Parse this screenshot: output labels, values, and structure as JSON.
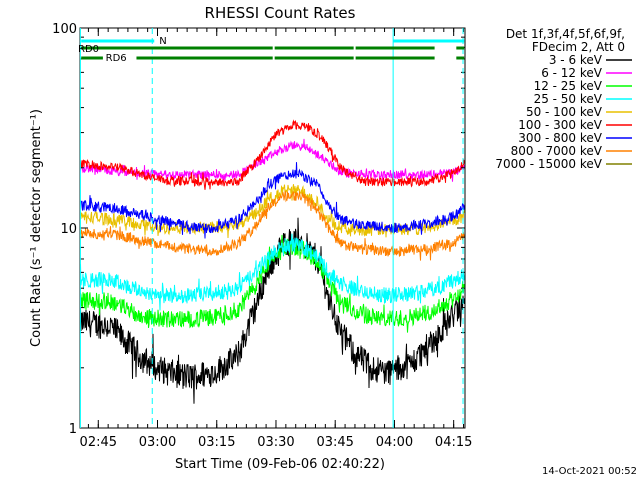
{
  "chart_data": {
    "type": "line",
    "title": "RHESSI Count Rates",
    "xlabel": "Start Time (09-Feb-06 02:40:22)",
    "ylabel": "Count Rate (s⁻¹ detector segment⁻¹)",
    "yscale": "log",
    "ylim": [
      1,
      100
    ],
    "xlim_minutes": [
      0,
      97.5
    ],
    "x_ticks": [
      {
        "label": "02:45",
        "t": 4.63
      },
      {
        "label": "03:00",
        "t": 19.63
      },
      {
        "label": "03:15",
        "t": 34.63
      },
      {
        "label": "03:30",
        "t": 49.63
      },
      {
        "label": "03:45",
        "t": 64.63
      },
      {
        "label": "04:00",
        "t": 79.63
      },
      {
        "label": "04:15",
        "t": 94.63
      }
    ],
    "y_ticks": [
      {
        "label": "1",
        "v": 1
      },
      {
        "label": "10",
        "v": 10
      },
      {
        "label": "100",
        "v": 100
      }
    ],
    "legend_title": [
      "Det 1f,3f,4f,5f,6f,9f,",
      "FDecim 2, Att 0"
    ],
    "legend_position": "right",
    "series": [
      {
        "name": "3 - 6 keV",
        "color": "#000000",
        "points": [
          [
            0,
            3.4
          ],
          [
            8,
            3.2
          ],
          [
            16,
            2.2
          ],
          [
            22,
            1.9
          ],
          [
            28,
            1.8
          ],
          [
            34,
            1.9
          ],
          [
            40,
            2.3
          ],
          [
            44,
            3.8
          ],
          [
            48,
            6.5
          ],
          [
            52,
            8.5
          ],
          [
            56,
            8.7
          ],
          [
            60,
            7.0
          ],
          [
            63,
            4.5
          ],
          [
            66,
            3.0
          ],
          [
            70,
            2.3
          ],
          [
            74,
            2.0
          ],
          [
            78,
            1.9
          ],
          [
            84,
            2.1
          ],
          [
            90,
            2.8
          ],
          [
            95,
            3.8
          ],
          [
            97.5,
            4.2
          ]
        ]
      },
      {
        "name": "6 - 12 keV",
        "color": "#ff00ff",
        "points": [
          [
            0,
            20
          ],
          [
            10,
            19
          ],
          [
            20,
            18.5
          ],
          [
            30,
            18.5
          ],
          [
            40,
            18.5
          ],
          [
            45,
            21
          ],
          [
            50,
            24
          ],
          [
            54,
            26
          ],
          [
            58,
            25
          ],
          [
            62,
            22
          ],
          [
            66,
            19
          ],
          [
            72,
            18.5
          ],
          [
            80,
            18.5
          ],
          [
            88,
            18.5
          ],
          [
            95,
            19
          ],
          [
            97.5,
            20
          ]
        ]
      },
      {
        "name": "12 - 25 keV",
        "color": "#00ff00",
        "points": [
          [
            0,
            4.4
          ],
          [
            8,
            4.3
          ],
          [
            16,
            3.6
          ],
          [
            22,
            3.5
          ],
          [
            28,
            3.5
          ],
          [
            34,
            3.6
          ],
          [
            40,
            3.9
          ],
          [
            44,
            5.0
          ],
          [
            48,
            6.8
          ],
          [
            52,
            8.0
          ],
          [
            56,
            8.0
          ],
          [
            60,
            6.8
          ],
          [
            63,
            5.2
          ],
          [
            66,
            4.3
          ],
          [
            70,
            3.8
          ],
          [
            74,
            3.6
          ],
          [
            78,
            3.5
          ],
          [
            84,
            3.6
          ],
          [
            90,
            3.9
          ],
          [
            95,
            4.5
          ],
          [
            97.5,
            5.0
          ]
        ]
      },
      {
        "name": "25 - 50 keV",
        "color": "#00ffff",
        "points": [
          [
            0,
            5.5
          ],
          [
            8,
            5.5
          ],
          [
            16,
            4.8
          ],
          [
            22,
            4.6
          ],
          [
            28,
            4.6
          ],
          [
            34,
            4.7
          ],
          [
            40,
            5.0
          ],
          [
            44,
            5.8
          ],
          [
            48,
            7.2
          ],
          [
            52,
            8.2
          ],
          [
            56,
            8.2
          ],
          [
            60,
            7.2
          ],
          [
            63,
            6.0
          ],
          [
            66,
            5.3
          ],
          [
            70,
            4.9
          ],
          [
            74,
            4.7
          ],
          [
            78,
            4.6
          ],
          [
            84,
            4.7
          ],
          [
            90,
            5.0
          ],
          [
            95,
            5.5
          ],
          [
            97.5,
            5.8
          ]
        ]
      },
      {
        "name": "50 - 100 keV",
        "color": "#e8c000",
        "points": [
          [
            0,
            11.5
          ],
          [
            10,
            11
          ],
          [
            20,
            10
          ],
          [
            30,
            10
          ],
          [
            40,
            10.5
          ],
          [
            44,
            11.5
          ],
          [
            48,
            14
          ],
          [
            52,
            15.5
          ],
          [
            56,
            15.5
          ],
          [
            60,
            13.5
          ],
          [
            63,
            11
          ],
          [
            66,
            10
          ],
          [
            72,
            9.8
          ],
          [
            80,
            9.8
          ],
          [
            88,
            10
          ],
          [
            95,
            11
          ],
          [
            97.5,
            11.5
          ]
        ]
      },
      {
        "name": "100 - 300 keV",
        "color": "#ff0000",
        "points": [
          [
            0,
            21
          ],
          [
            10,
            20
          ],
          [
            20,
            17.5
          ],
          [
            30,
            17
          ],
          [
            40,
            17
          ],
          [
            45,
            22
          ],
          [
            50,
            30
          ],
          [
            54,
            33
          ],
          [
            58,
            32
          ],
          [
            62,
            27
          ],
          [
            66,
            20
          ],
          [
            72,
            17
          ],
          [
            80,
            17
          ],
          [
            88,
            17
          ],
          [
            95,
            19
          ],
          [
            97.5,
            21
          ]
        ]
      },
      {
        "name": "300 - 800 keV",
        "color": "#0000ff",
        "points": [
          [
            0,
            13
          ],
          [
            10,
            12.5
          ],
          [
            20,
            11
          ],
          [
            28,
            10.2
          ],
          [
            34,
            10
          ],
          [
            40,
            11
          ],
          [
            44,
            13
          ],
          [
            48,
            16.5
          ],
          [
            52,
            18.5
          ],
          [
            56,
            18.5
          ],
          [
            60,
            16.5
          ],
          [
            63,
            13
          ],
          [
            66,
            11
          ],
          [
            72,
            10.3
          ],
          [
            80,
            10
          ],
          [
            88,
            10.5
          ],
          [
            95,
            11.5
          ],
          [
            97.5,
            13
          ]
        ]
      },
      {
        "name": "800 - 7000 keV",
        "color": "#ff8000",
        "points": [
          [
            0,
            9.5
          ],
          [
            10,
            9.2
          ],
          [
            20,
            8.3
          ],
          [
            28,
            7.8
          ],
          [
            34,
            7.7
          ],
          [
            40,
            8.3
          ],
          [
            44,
            10
          ],
          [
            48,
            13
          ],
          [
            52,
            14.5
          ],
          [
            56,
            14.5
          ],
          [
            60,
            12.5
          ],
          [
            63,
            10
          ],
          [
            66,
            8.3
          ],
          [
            72,
            7.8
          ],
          [
            80,
            7.6
          ],
          [
            88,
            7.9
          ],
          [
            95,
            8.5
          ],
          [
            97.5,
            9.3
          ]
        ]
      },
      {
        "name": "7000 - 15000 keV",
        "color": "#808000",
        "points": []
      }
    ],
    "annotations": {
      "N": {
        "label": "N",
        "color": "#00ffff",
        "t_start": 0.3,
        "t_end": 18.8
      },
      "RD0": {
        "label": "RD0",
        "color": "#008000",
        "segments": [
          [
            0.3,
            48.8
          ],
          [
            49.3,
            69.3
          ],
          [
            69.8,
            89.8
          ],
          [
            95.3,
            97.3
          ]
        ]
      },
      "RD6": {
        "label": "RD6",
        "color": "#008000",
        "segments": [
          [
            0.3,
            5.8
          ],
          [
            14.3,
            48.8
          ],
          [
            49.3,
            69.3
          ],
          [
            69.8,
            89.8
          ],
          [
            95.3,
            97.3
          ]
        ]
      },
      "cyan_top_right": {
        "color": "#00ffff",
        "t_start": 79.3,
        "t_end": 97.3
      },
      "vlines_solid": [
        0.1,
        79.3
      ],
      "vlines_dashed": [
        18.3,
        97.0
      ]
    },
    "timestamp": "14-Oct-2021 00:52"
  }
}
